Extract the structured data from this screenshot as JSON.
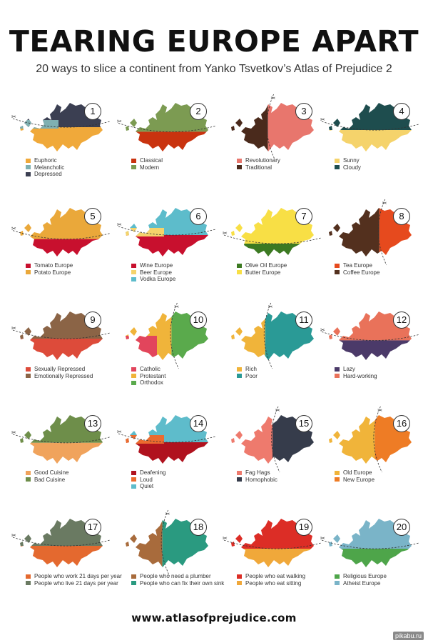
{
  "title": "TEARING EUROPE APART",
  "subtitle": "20 ways to slice a continent from Yanko Tsvetkov’s Atlas of Prejudice 2",
  "url": "www.atlasofprejudice.com",
  "watermark": "pikabu.ru",
  "maps": [
    {
      "num": "1",
      "mode": "h",
      "split": 0.5,
      "top": "#3b3f52",
      "bottom": "#f0a93a",
      "mid": "#7fb0b1",
      "legend": [
        {
          "label": "Euphoric",
          "color": "#f0a93a"
        },
        {
          "label": "Melancholic",
          "color": "#7fb0b1"
        },
        {
          "label": "Depressed",
          "color": "#3b3f52"
        }
      ]
    },
    {
      "num": "2",
      "mode": "h",
      "split": 0.58,
      "top": "#7c9b52",
      "bottom": "#c9330f",
      "legend": [
        {
          "label": "Classical",
          "color": "#c9330f"
        },
        {
          "label": "Modern",
          "color": "#7c9b52"
        }
      ]
    },
    {
      "num": "3",
      "mode": "v",
      "split": 0.45,
      "left": "#4a2a1c",
      "right": "#e8766d",
      "legend": [
        {
          "label": "Revolutionary",
          "color": "#e8766d"
        },
        {
          "label": "Traditional",
          "color": "#4a2a1c"
        }
      ]
    },
    {
      "num": "4",
      "mode": "h",
      "split": 0.55,
      "top": "#1e4d4e",
      "bottom": "#f5d36b",
      "legend": [
        {
          "label": "Sunny",
          "color": "#f5d36b"
        },
        {
          "label": "Cloudy",
          "color": "#1e4d4e"
        }
      ]
    },
    {
      "num": "5",
      "mode": "h",
      "split": 0.62,
      "top": "#eaa83a",
      "bottom": "#c8102e",
      "legend": [
        {
          "label": "Tomato Europe",
          "color": "#c8102e"
        },
        {
          "label": "Potato Europe",
          "color": "#eaa83a"
        }
      ]
    },
    {
      "num": "6",
      "mode": "h",
      "split": 0.55,
      "top": "#5dbccb",
      "bottom": "#c8102e",
      "mid": "#f5d36b",
      "legend": [
        {
          "label": "Wine Europe",
          "color": "#c8102e"
        },
        {
          "label": "Beer Europe",
          "color": "#f5d36b"
        },
        {
          "label": "Vodka Europe",
          "color": "#5dbccb"
        }
      ]
    },
    {
      "num": "7",
      "mode": "h",
      "split": 0.7,
      "top": "#f8df45",
      "bottom": "#3c7a22",
      "legend": [
        {
          "label": "Olive Oil Europe",
          "color": "#3c7a22"
        },
        {
          "label": "Butter Europe",
          "color": "#f8df45"
        }
      ]
    },
    {
      "num": "8",
      "mode": "v",
      "split": 0.6,
      "left": "#53301e",
      "right": "#e64a1e",
      "legend": [
        {
          "label": "Tea Europe",
          "color": "#e64a1e"
        },
        {
          "label": "Coffee Europe",
          "color": "#53301e"
        }
      ]
    },
    {
      "num": "9",
      "mode": "h",
      "split": 0.55,
      "top": "#8b6446",
      "bottom": "#dd4b3a",
      "legend": [
        {
          "label": "Sexually Repressed",
          "color": "#dd4b3a"
        },
        {
          "label": "Emotionally Repressed",
          "color": "#8b6446"
        }
      ]
    },
    {
      "num": "10",
      "mode": "v",
      "split": 0.55,
      "left": "#f0b43a",
      "right": "#5aaa4c",
      "mid": "#e2455c",
      "legend": [
        {
          "label": "Catholic",
          "color": "#e2455c"
        },
        {
          "label": "Protestant",
          "color": "#f0b43a"
        },
        {
          "label": "Orthodox",
          "color": "#5aaa4c"
        }
      ]
    },
    {
      "num": "11",
      "mode": "v",
      "split": 0.42,
      "left": "#f0b43a",
      "right": "#2a9a96",
      "legend": [
        {
          "label": "Rich",
          "color": "#f0b43a"
        },
        {
          "label": "Poor",
          "color": "#2a9a96"
        }
      ]
    },
    {
      "num": "12",
      "mode": "h",
      "split": 0.58,
      "top": "#e9725a",
      "bottom": "#4b3a69",
      "legend": [
        {
          "label": "Lazy",
          "color": "#4b3a69"
        },
        {
          "label": "Hard-working",
          "color": "#e9725a"
        }
      ]
    },
    {
      "num": "13",
      "mode": "h",
      "split": 0.56,
      "top": "#6e8e4a",
      "bottom": "#f0a35c",
      "legend": [
        {
          "label": "Good Cuisine",
          "color": "#f0a35c"
        },
        {
          "label": "Bad Cuisine",
          "color": "#6e8e4a"
        }
      ]
    },
    {
      "num": "14",
      "mode": "h",
      "split": 0.55,
      "top": "#5ebccb",
      "bottom": "#b0121e",
      "mid": "#ec6b2f",
      "legend": [
        {
          "label": "Deafening",
          "color": "#b0121e"
        },
        {
          "label": "Loud",
          "color": "#ec6b2f"
        },
        {
          "label": "Quiet",
          "color": "#5ebccb"
        }
      ]
    },
    {
      "num": "15",
      "mode": "v",
      "split": 0.5,
      "left": "#ee7a6d",
      "right": "#363c4b",
      "legend": [
        {
          "label": "Fag Hags",
          "color": "#ee7a6d"
        },
        {
          "label": "Homophobic",
          "color": "#363c4b"
        }
      ]
    },
    {
      "num": "16",
      "mode": "v",
      "split": 0.55,
      "left": "#f0b43a",
      "right": "#ee7c25",
      "legend": [
        {
          "label": "Old Europe",
          "color": "#f0b43a"
        },
        {
          "label": "New Europe",
          "color": "#ee7c25"
        }
      ]
    },
    {
      "num": "17",
      "mode": "h",
      "split": 0.55,
      "top": "#6a7a62",
      "bottom": "#e4692f",
      "legend": [
        {
          "label": "People who work 21 days per year",
          "color": "#e4692f"
        },
        {
          "label": "People who live 21 days per year",
          "color": "#6a7a62"
        }
      ]
    },
    {
      "num": "18",
      "mode": "v",
      "split": 0.45,
      "left": "#a86b3c",
      "right": "#2a9a80",
      "legend": [
        {
          "label": "People who need a plumber",
          "color": "#a86b3c"
        },
        {
          "label": "People who can fix their own sink",
          "color": "#2a9a80"
        }
      ]
    },
    {
      "num": "19",
      "mode": "h",
      "split": 0.6,
      "top": "#dc2d26",
      "bottom": "#f0a83a",
      "legend": [
        {
          "label": "People who eat walking",
          "color": "#dc2d26"
        },
        {
          "label": "People who eat sitting",
          "color": "#f0a83a"
        }
      ]
    },
    {
      "num": "20",
      "mode": "h",
      "split": 0.6,
      "top": "#7ab4c8",
      "bottom": "#4ea54a",
      "legend": [
        {
          "label": "Religious Europe",
          "color": "#4ea54a"
        },
        {
          "label": "Atheist Europe",
          "color": "#7ab4c8"
        }
      ]
    }
  ]
}
